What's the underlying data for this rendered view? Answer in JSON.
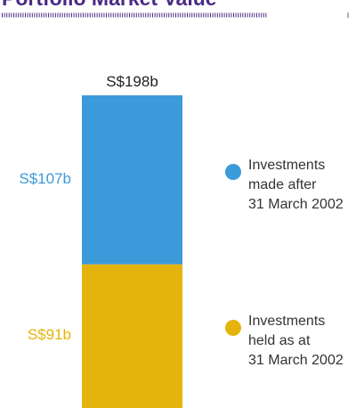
{
  "chart_data": {
    "type": "stacked-bar",
    "title": "Portfolio Market Value",
    "total": 198,
    "total_label": "S$198b",
    "series": [
      {
        "name": "Investments\nheld as at\n31 March 2002",
        "color": "#e5b40c",
        "values": [
          91
        ],
        "value_labels": [
          "S$91b"
        ]
      },
      {
        "name": "Investments\nmade after\n31 March 2002",
        "color": "#3b9ad9",
        "values": [
          107
        ],
        "value_labels": [
          "S$107b"
        ]
      }
    ]
  }
}
